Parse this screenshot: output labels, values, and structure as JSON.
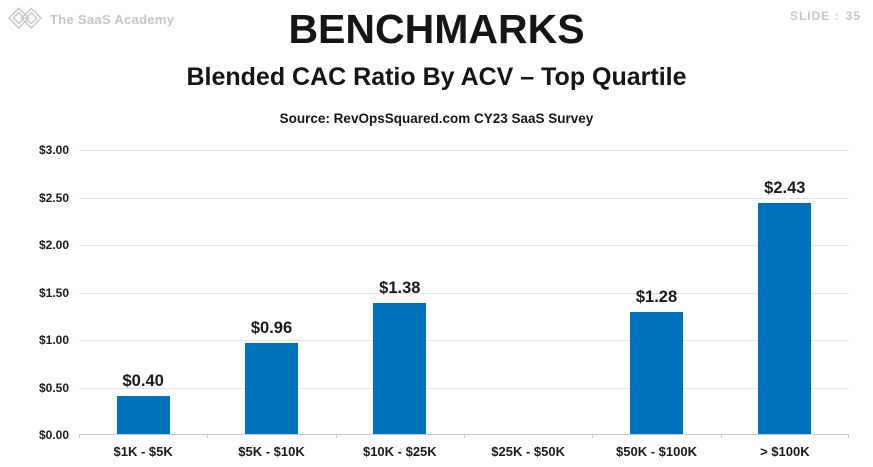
{
  "header": {
    "brand": "The SaaS Academy",
    "slide_label": "SLIDE :",
    "slide_number": "35"
  },
  "title": "BENCHMARKS",
  "subtitle": "Blended CAC Ratio By ACV – Top Quartile",
  "source": "Source: RevOpsSquared.com CY23 SaaS Survey",
  "chart_data": {
    "type": "bar",
    "title": "Blended CAC Ratio By ACV – Top Quartile",
    "categories": [
      "$1K - $5K",
      "$5K - $10K",
      "$10K - $25K",
      "$25K - $50K",
      "$50K - $100K",
      "> $100K"
    ],
    "values": [
      0.4,
      0.96,
      1.38,
      null,
      1.28,
      2.43
    ],
    "data_labels": [
      "$0.40",
      "$0.96",
      "$1.38",
      null,
      "$1.28",
      "$2.43"
    ],
    "y_ticks": [
      "$0.00",
      "$0.50",
      "$1.00",
      "$1.50",
      "$2.00",
      "$2.50",
      "$3.00"
    ],
    "ylim": [
      0,
      3
    ],
    "xlabel": "",
    "ylabel": "",
    "grid": true,
    "legend": "none",
    "bar_color": "#0072BC"
  },
  "colors": {
    "bar": "#0072BC",
    "muted_text": "#c7c7c7",
    "gridline": "#e4e4e4",
    "axis": "#c9c9c9",
    "text": "#151515"
  }
}
